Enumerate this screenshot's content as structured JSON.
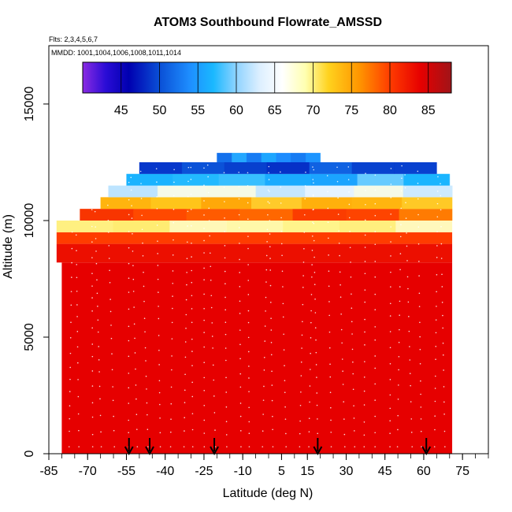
{
  "chart_data": {
    "type": "heatmap",
    "title": "ATOM3 Southbound Flowrate_AMSSD",
    "subtitle_flights": "Flts: 2,3,4,5,6,7",
    "subtitle_dates": "MMDD: 1001,1004,1006,1008,1011,1014",
    "xlabel": "Latitude (deg N)",
    "ylabel": "Altitude (m)",
    "xlim": [
      -85,
      85
    ],
    "ylim": [
      0,
      17500
    ],
    "xticks": [
      -85,
      -70,
      -55,
      -40,
      -25,
      -10,
      5,
      15,
      30,
      45,
      60,
      75
    ],
    "yticks": [
      0,
      5000,
      10000,
      15000
    ],
    "colorbar": {
      "range": [
        40,
        88
      ],
      "ticks": [
        45,
        50,
        55,
        60,
        65,
        70,
        75,
        80,
        85
      ],
      "stops": [
        {
          "v": 40,
          "c": "#8a2be2"
        },
        {
          "v": 43,
          "c": "#2a0cd6"
        },
        {
          "v": 46,
          "c": "#0000b0"
        },
        {
          "v": 50,
          "c": "#0a4fd6"
        },
        {
          "v": 54,
          "c": "#1e8fff"
        },
        {
          "v": 57,
          "c": "#1ab8ff"
        },
        {
          "v": 60,
          "c": "#8fd3ff"
        },
        {
          "v": 63,
          "c": "#dcefff"
        },
        {
          "v": 66,
          "c": "#ffffff"
        },
        {
          "v": 69,
          "c": "#ffffb0"
        },
        {
          "v": 72,
          "c": "#ffd21e"
        },
        {
          "v": 76,
          "c": "#ff9600"
        },
        {
          "v": 80,
          "c": "#ff3c00"
        },
        {
          "v": 84,
          "c": "#e60000"
        },
        {
          "v": 88,
          "c": "#a01418"
        }
      ]
    },
    "profile_layers": [
      {
        "alt_min": 0,
        "alt_max": 8200,
        "lat_min": -80,
        "lat_max": 71,
        "value": 84
      },
      {
        "alt_min": 8200,
        "alt_max": 9000,
        "lat_min": -82,
        "lat_max": 71,
        "value": 83
      },
      {
        "alt_min": 9000,
        "alt_max": 9500,
        "lat_min": -82,
        "lat_max": 71,
        "value": 80
      },
      {
        "alt_min": 9500,
        "alt_max": 10000,
        "lat_min": -82,
        "lat_max": 71,
        "value": 70
      },
      {
        "alt_min": 10000,
        "alt_max": 10500,
        "lat_min": -73,
        "lat_max": 71,
        "value": 79
      },
      {
        "alt_min": 10500,
        "alt_max": 11000,
        "lat_min": -65,
        "lat_max": 71,
        "value": 74
      },
      {
        "alt_min": 11000,
        "alt_max": 11500,
        "lat_min": -62,
        "lat_max": 71,
        "value": 64
      },
      {
        "alt_min": 11500,
        "alt_max": 12000,
        "lat_min": -55,
        "lat_max": 70,
        "value": 57
      },
      {
        "alt_min": 12000,
        "alt_max": 12500,
        "lat_min": -50,
        "lat_max": 65,
        "value": 50
      },
      {
        "alt_min": 12500,
        "alt_max": 12900,
        "lat_min": -20,
        "lat_max": 20,
        "value": 54
      }
    ],
    "sounding_arrows_lat": [
      -54,
      -46,
      -21,
      19,
      61
    ]
  }
}
